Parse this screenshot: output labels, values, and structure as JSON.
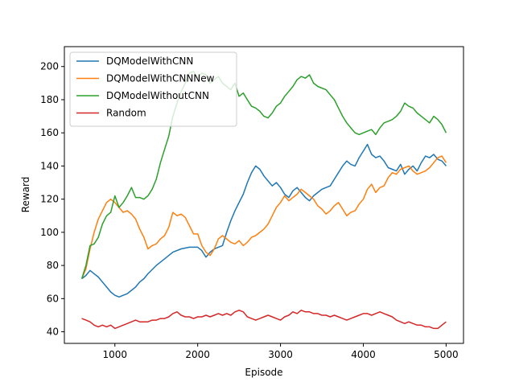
{
  "chart_data": {
    "type": "line",
    "xlabel": "Episode",
    "ylabel": "Reward",
    "xlim": [
      390,
      5210
    ],
    "ylim": [
      33,
      212
    ],
    "xticks": [
      1000,
      2000,
      3000,
      4000,
      5000
    ],
    "yticks": [
      40,
      60,
      80,
      100,
      120,
      140,
      160,
      180,
      200
    ],
    "grid": false,
    "legend_position": "top-left",
    "series": [
      {
        "name": "DQModelWithCNN",
        "color": "#1f77b4",
        "x": [
          600,
          650,
          700,
          750,
          800,
          850,
          900,
          950,
          1000,
          1050,
          1100,
          1150,
          1200,
          1250,
          1300,
          1350,
          1400,
          1500,
          1600,
          1700,
          1800,
          1900,
          2000,
          2050,
          2100,
          2150,
          2200,
          2250,
          2300,
          2350,
          2400,
          2450,
          2500,
          2550,
          2600,
          2650,
          2700,
          2750,
          2800,
          2850,
          2900,
          2950,
          3000,
          3050,
          3100,
          3150,
          3200,
          3250,
          3300,
          3350,
          3400,
          3450,
          3500,
          3550,
          3600,
          3650,
          3700,
          3750,
          3800,
          3850,
          3900,
          3950,
          4000,
          4050,
          4100,
          4150,
          4200,
          4250,
          4300,
          4350,
          4400,
          4450,
          4500,
          4550,
          4600,
          4650,
          4700,
          4750,
          4800,
          4850,
          4900,
          4950,
          5000
        ],
        "y": [
          72,
          74,
          77,
          75,
          73,
          70,
          67,
          64,
          62,
          61,
          62,
          63,
          65,
          67,
          70,
          72,
          75,
          80,
          84,
          88,
          90,
          91,
          91,
          89,
          85,
          88,
          90,
          91,
          92,
          100,
          107,
          113,
          118,
          123,
          130,
          136,
          140,
          138,
          134,
          131,
          128,
          130,
          127,
          123,
          121,
          125,
          127,
          124,
          121,
          119,
          122,
          124,
          126,
          127,
          128,
          132,
          136,
          140,
          143,
          141,
          140,
          145,
          149,
          153,
          147,
          145,
          146,
          143,
          139,
          138,
          137,
          141,
          135,
          138,
          140,
          137,
          142,
          146,
          145,
          147,
          144,
          143,
          140
        ]
      },
      {
        "name": "DQModelWithCNNNew",
        "color": "#ff7f0e",
        "x": [
          600,
          650,
          700,
          750,
          800,
          850,
          900,
          950,
          1000,
          1050,
          1100,
          1150,
          1200,
          1250,
          1300,
          1350,
          1400,
          1450,
          1500,
          1550,
          1600,
          1650,
          1700,
          1750,
          1800,
          1850,
          1900,
          1950,
          2000,
          2050,
          2100,
          2150,
          2200,
          2250,
          2300,
          2350,
          2400,
          2450,
          2500,
          2550,
          2600,
          2650,
          2700,
          2750,
          2800,
          2850,
          2900,
          2950,
          3000,
          3050,
          3100,
          3150,
          3200,
          3250,
          3300,
          3350,
          3400,
          3450,
          3500,
          3550,
          3600,
          3650,
          3700,
          3750,
          3800,
          3850,
          3900,
          3950,
          4000,
          4050,
          4100,
          4150,
          4200,
          4250,
          4300,
          4350,
          4400,
          4450,
          4500,
          4550,
          4600,
          4650,
          4700,
          4750,
          4800,
          4850,
          4900,
          4950,
          5000
        ],
        "y": [
          72,
          78,
          90,
          100,
          108,
          113,
          118,
          120,
          118,
          115,
          112,
          113,
          111,
          108,
          102,
          97,
          90,
          92,
          93,
          96,
          98,
          103,
          112,
          110,
          111,
          109,
          104,
          99,
          99,
          92,
          88,
          86,
          90,
          96,
          98,
          96,
          94,
          93,
          95,
          92,
          94,
          97,
          98,
          100,
          102,
          105,
          110,
          115,
          118,
          122,
          119,
          121,
          123,
          126,
          124,
          122,
          120,
          116,
          114,
          111,
          113,
          116,
          118,
          114,
          110,
          112,
          113,
          117,
          120,
          126,
          129,
          124,
          127,
          128,
          133,
          136,
          135,
          138,
          139,
          140,
          137,
          135,
          136,
          137,
          139,
          142,
          145,
          146,
          142
        ]
      },
      {
        "name": "DQModelWithoutCNN",
        "color": "#2ca02c",
        "x": [
          600,
          650,
          700,
          750,
          800,
          850,
          900,
          950,
          1000,
          1050,
          1100,
          1150,
          1200,
          1250,
          1300,
          1350,
          1400,
          1450,
          1500,
          1550,
          1600,
          1650,
          1700,
          1750,
          1800,
          1850,
          1900,
          1950,
          2000,
          2050,
          2100,
          2150,
          2200,
          2250,
          2300,
          2350,
          2400,
          2450,
          2500,
          2550,
          2600,
          2650,
          2700,
          2750,
          2800,
          2850,
          2900,
          2950,
          3000,
          3050,
          3100,
          3150,
          3200,
          3250,
          3300,
          3350,
          3400,
          3450,
          3500,
          3550,
          3600,
          3650,
          3700,
          3750,
          3800,
          3850,
          3900,
          3950,
          4000,
          4050,
          4100,
          4150,
          4200,
          4250,
          4300,
          4350,
          4400,
          4450,
          4500,
          4550,
          4600,
          4650,
          4700,
          4750,
          4800,
          4850,
          4900,
          4950,
          5000
        ],
        "y": [
          72,
          80,
          92,
          93,
          97,
          105,
          110,
          112,
          122,
          115,
          118,
          122,
          127,
          121,
          121,
          120,
          122,
          126,
          132,
          142,
          150,
          158,
          170,
          178,
          185,
          190,
          196,
          197,
          193,
          196,
          195,
          190,
          192,
          194,
          190,
          188,
          186,
          190,
          182,
          184,
          180,
          176,
          175,
          173,
          170,
          169,
          172,
          176,
          178,
          182,
          185,
          188,
          192,
          194,
          193,
          195,
          190,
          188,
          187,
          186,
          183,
          180,
          175,
          170,
          166,
          163,
          160,
          159,
          160,
          161,
          162,
          159,
          163,
          166,
          167,
          168,
          170,
          173,
          178,
          176,
          175,
          172,
          170,
          168,
          166,
          170,
          168,
          165,
          160
        ]
      },
      {
        "name": "Random",
        "color": "#d62728",
        "x": [
          600,
          650,
          700,
          750,
          800,
          850,
          900,
          950,
          1000,
          1050,
          1100,
          1150,
          1200,
          1250,
          1300,
          1350,
          1400,
          1450,
          1500,
          1550,
          1600,
          1650,
          1700,
          1750,
          1800,
          1850,
          1900,
          1950,
          2000,
          2050,
          2100,
          2150,
          2200,
          2250,
          2300,
          2350,
          2400,
          2450,
          2500,
          2550,
          2600,
          2650,
          2700,
          2750,
          2800,
          2850,
          2900,
          2950,
          3000,
          3050,
          3100,
          3150,
          3200,
          3250,
          3300,
          3350,
          3400,
          3450,
          3500,
          3550,
          3600,
          3650,
          3700,
          3750,
          3800,
          3850,
          3900,
          3950,
          4000,
          4050,
          4100,
          4150,
          4200,
          4250,
          4300,
          4350,
          4400,
          4450,
          4500,
          4550,
          4600,
          4650,
          4700,
          4750,
          4800,
          4850,
          4900,
          4950,
          5000
        ],
        "y": [
          48,
          47,
          46,
          44,
          43,
          44,
          43,
          44,
          42,
          43,
          44,
          45,
          46,
          47,
          46,
          46,
          46,
          47,
          47,
          48,
          48,
          49,
          51,
          52,
          50,
          49,
          49,
          48,
          49,
          49,
          50,
          49,
          50,
          51,
          50,
          51,
          50,
          52,
          53,
          52,
          49,
          48,
          47,
          48,
          49,
          50,
          49,
          48,
          47,
          49,
          50,
          52,
          51,
          53,
          52,
          52,
          51,
          51,
          50,
          50,
          49,
          50,
          49,
          48,
          47,
          48,
          49,
          50,
          51,
          51,
          50,
          51,
          52,
          51,
          50,
          49,
          47,
          46,
          45,
          46,
          45,
          44,
          44,
          43,
          43,
          42,
          42,
          44,
          46
        ]
      }
    ]
  }
}
